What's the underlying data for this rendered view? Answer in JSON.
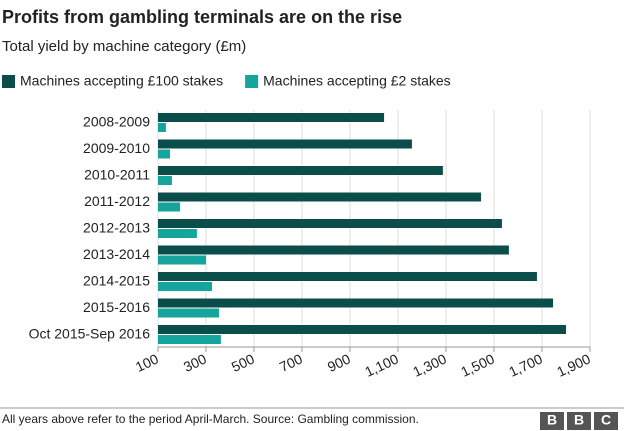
{
  "chart_data": {
    "type": "hbar",
    "title": "Profits from gambling terminals are on the rise",
    "subtitle": "Total yield by machine category (£m)",
    "categories": [
      "2008-2009",
      "2009-2010",
      "2010-2011",
      "2011-2012",
      "2012-2013",
      "2013-2014",
      "2014-2015",
      "2015-2016",
      "Oct 2015-Sep 2016"
    ],
    "series": [
      {
        "name": "Machines accepting £100 stakes",
        "color": "#0b4d4b",
        "values": [
          1042,
          1158,
          1287,
          1446,
          1533,
          1562,
          1679,
          1746,
          1800
        ]
      },
      {
        "name": "Machines accepting £2 stakes",
        "color": "#16a59c",
        "values": [
          133,
          150,
          158,
          192,
          262,
          300,
          325,
          354,
          362
        ]
      }
    ],
    "xlim": [
      100,
      1900
    ],
    "xticks": [
      100,
      300,
      500,
      700,
      900,
      {
        "value": 1100,
        "label": "1,100"
      },
      {
        "value": 1300,
        "label": "1,300"
      },
      {
        "value": 1500,
        "label": "1,500"
      },
      {
        "value": 1700,
        "label": "1,700"
      },
      {
        "value": 1900,
        "label": "1,900"
      }
    ],
    "grid": true,
    "legend": "top",
    "footer": "All years above refer to the period April-March. Source: Gambling commission.",
    "logo": [
      "B",
      "B",
      "C"
    ]
  }
}
